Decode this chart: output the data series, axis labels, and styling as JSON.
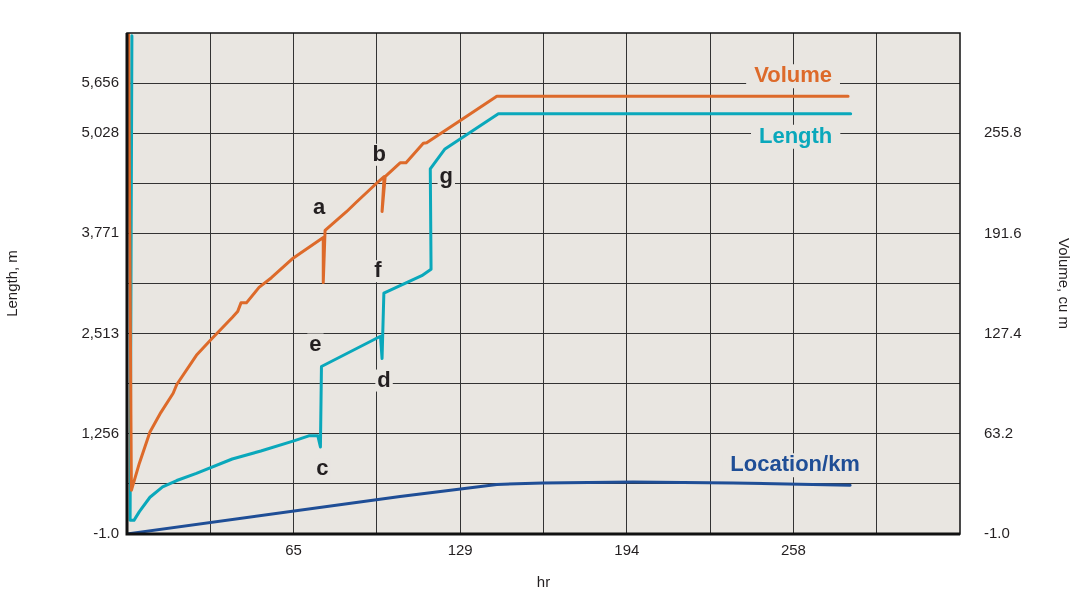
{
  "chart_data": {
    "type": "line",
    "xlabel": "hr",
    "ylabel": "Length, m",
    "y2label": "Volume, cu m",
    "grid": true,
    "marker": "none",
    "line_style": "solid",
    "xlim": [
      0,
      323
    ],
    "xticks": [
      {
        "value": 32.3,
        "label": null
      },
      {
        "value": 64.6,
        "label": "65"
      },
      {
        "value": 96.9,
        "label": null
      },
      {
        "value": 129.2,
        "label": "129"
      },
      {
        "value": 161.5,
        "label": null
      },
      {
        "value": 193.8,
        "label": "194"
      },
      {
        "value": 226.1,
        "label": null
      },
      {
        "value": 258.4,
        "label": "258"
      },
      {
        "value": 290.7,
        "label": null
      }
    ],
    "ylim": [
      -1,
      6284
    ],
    "yticks": [
      {
        "value": -1,
        "label": "-1.0"
      },
      {
        "value": 627.6,
        "label": null
      },
      {
        "value": 1256,
        "label": "1,256"
      },
      {
        "value": 1884,
        "label": null
      },
      {
        "value": 2513,
        "label": "2,513"
      },
      {
        "value": 3141,
        "label": null
      },
      {
        "value": 3771,
        "label": "3,771"
      },
      {
        "value": 4400,
        "label": null
      },
      {
        "value": 5028,
        "label": "5,028"
      },
      {
        "value": 5656,
        "label": "5,656"
      }
    ],
    "y2lim": [
      -1,
      320
    ],
    "y2ticks": [
      {
        "value": -1,
        "label": "-1.0"
      },
      63.2,
      127.4,
      191.6,
      255.8
    ],
    "series": [
      {
        "name": "Volume",
        "color": "#dd6a2a",
        "axis": "y2",
        "x": [
          0.6,
          1.7,
          4.8,
          8.9,
          13.1,
          17.9,
          19.3,
          26.9,
          32.5,
          40.8,
          42.9,
          44.2,
          46.3,
          51.2,
          56.0,
          64.4,
          71.3,
          76.1,
          76.1,
          76.8,
          85.1,
          88.6,
          97.6,
          99.7,
          98.9,
          100.1,
          105.9,
          108.2,
          114.9,
          116.2,
          129.1,
          143.4,
          279.6
        ],
        "values": [
          319,
          27.0,
          44.4,
          64.3,
          76.8,
          89.2,
          94.8,
          113.5,
          123.4,
          137.7,
          141.5,
          147.1,
          147.1,
          157.0,
          163.2,
          175.7,
          183.5,
          189.0,
          160.1,
          193.5,
          205.5,
          211.1,
          225.0,
          228.0,
          205.6,
          228.0,
          236.8,
          236.8,
          249.3,
          249.7,
          263.8,
          279.4,
          279.4
        ]
      },
      {
        "name": "Length",
        "color": "#0aa8bb",
        "x": [
          1.9,
          1.2,
          2.7,
          4.8,
          8.9,
          13.8,
          19.3,
          26.9,
          40.8,
          51.9,
          65.0,
          70.5,
          74.0,
          75.0,
          75.4,
          98.3,
          98.9,
          99.6,
          114.3,
          117.9,
          117.6,
          123.3,
          144.0,
          280.6
        ],
        "values": [
          6250,
          170,
          170,
          280,
          460,
          590,
          670,
          760,
          940,
          1040,
          1170,
          1230,
          1230,
          1090,
          2100,
          2480,
          2200,
          3020,
          3240,
          3320,
          4580,
          4830,
          5270,
          5270
        ]
      },
      {
        "name": "Location/km",
        "color": "#1f4e96",
        "x": [
          0,
          105.9,
          143.4,
          161.3,
          196.2,
          235.0,
          280.4
        ],
        "values": [
          0,
          470,
          620,
          640,
          650,
          640,
          610
        ]
      }
    ],
    "annotations": [
      {
        "text": "a",
        "x": 76.8,
        "y": 3810
      },
      {
        "text": "b",
        "x": 100.1,
        "y": 4480
      },
      {
        "text": "c",
        "x": 75.0,
        "y": 1090
      },
      {
        "text": "d",
        "x": 98.9,
        "y": 2200
      },
      {
        "text": "e",
        "x": 75.4,
        "y": 2100
      },
      {
        "text": "f",
        "x": 99.6,
        "y": 3020
      },
      {
        "text": "g",
        "x": 117.6,
        "y": 4580
      }
    ]
  }
}
